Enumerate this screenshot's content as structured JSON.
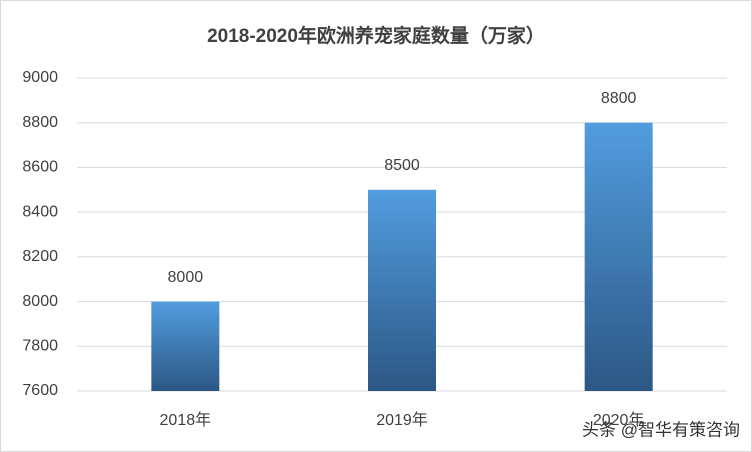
{
  "chart_data": {
    "type": "bar",
    "title": "2018-2020年欧洲养宠家庭数量（万家）",
    "categories": [
      "2018年",
      "2019年",
      "2020年"
    ],
    "values": [
      8000,
      8500,
      8800
    ],
    "ylim": [
      7600,
      9000
    ],
    "yticks": [
      7600,
      7800,
      8000,
      8200,
      8400,
      8600,
      8800,
      9000
    ],
    "grid": true,
    "color": [
      "#519de0",
      "#2c5784"
    ],
    "watermark": "头条 @智华有策咨询"
  }
}
